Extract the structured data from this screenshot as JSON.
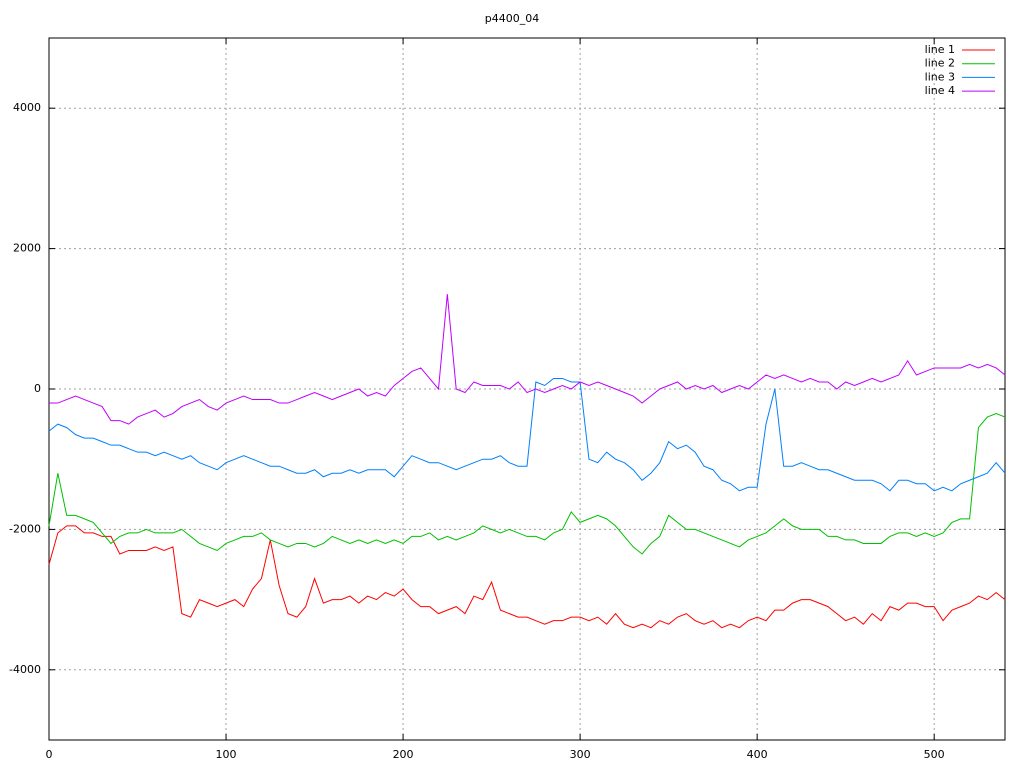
{
  "chart_data": {
    "type": "line",
    "title": "p4400_04",
    "x": [
      0,
      5,
      10,
      15,
      20,
      25,
      30,
      35,
      40,
      45,
      50,
      55,
      60,
      65,
      70,
      75,
      80,
      85,
      90,
      95,
      100,
      105,
      110,
      115,
      120,
      125,
      130,
      135,
      140,
      145,
      150,
      155,
      160,
      165,
      170,
      175,
      180,
      185,
      190,
      195,
      200,
      205,
      210,
      215,
      220,
      225,
      230,
      235,
      240,
      245,
      250,
      255,
      260,
      265,
      270,
      275,
      280,
      285,
      290,
      295,
      300,
      305,
      310,
      315,
      320,
      325,
      330,
      335,
      340,
      345,
      350,
      355,
      360,
      365,
      370,
      375,
      380,
      385,
      390,
      395,
      400,
      405,
      410,
      415,
      420,
      425,
      430,
      435,
      440,
      445,
      450,
      455,
      460,
      465,
      470,
      475,
      480,
      485,
      490,
      495,
      500,
      505,
      510,
      515,
      520,
      525,
      530,
      535,
      540
    ],
    "series": [
      {
        "name": "line 1",
        "color": "#ff0000",
        "values": [
          -2500,
          -2050,
          -1950,
          -1950,
          -2050,
          -2050,
          -2100,
          -2100,
          -2350,
          -2300,
          -2300,
          -2300,
          -2250,
          -2300,
          -2250,
          -3200,
          -3250,
          -3000,
          -3050,
          -3100,
          -3050,
          -3000,
          -3100,
          -2850,
          -2700,
          -2150,
          -2800,
          -3200,
          -3250,
          -3100,
          -2700,
          -3050,
          -3000,
          -3000,
          -2950,
          -3050,
          -2950,
          -3000,
          -2900,
          -2950,
          -2850,
          -3000,
          -3100,
          -3100,
          -3200,
          -3150,
          -3100,
          -3200,
          -2950,
          -3000,
          -2750,
          -3150,
          -3200,
          -3250,
          -3250,
          -3300,
          -3350,
          -3300,
          -3300,
          -3250,
          -3250,
          -3300,
          -3250,
          -3350,
          -3200,
          -3350,
          -3400,
          -3350,
          -3400,
          -3300,
          -3350,
          -3250,
          -3200,
          -3300,
          -3350,
          -3300,
          -3400,
          -3350,
          -3400,
          -3300,
          -3250,
          -3300,
          -3150,
          -3150,
          -3050,
          -3000,
          -3000,
          -3050,
          -3100,
          -3200,
          -3300,
          -3250,
          -3350,
          -3200,
          -3300,
          -3100,
          -3150,
          -3050,
          -3050,
          -3100,
          -3100,
          -3300,
          -3150,
          -3100,
          -3050,
          -2950,
          -3000,
          -2900,
          -3000
        ]
      },
      {
        "name": "line 2",
        "color": "#00c000",
        "values": [
          -1950,
          -1200,
          -1800,
          -1800,
          -1850,
          -1900,
          -2050,
          -2200,
          -2100,
          -2050,
          -2050,
          -2000,
          -2050,
          -2050,
          -2050,
          -2000,
          -2100,
          -2200,
          -2250,
          -2300,
          -2200,
          -2150,
          -2100,
          -2100,
          -2050,
          -2150,
          -2200,
          -2250,
          -2200,
          -2200,
          -2250,
          -2200,
          -2100,
          -2150,
          -2200,
          -2150,
          -2200,
          -2150,
          -2200,
          -2150,
          -2200,
          -2100,
          -2100,
          -2050,
          -2150,
          -2100,
          -2150,
          -2100,
          -2050,
          -1950,
          -2000,
          -2050,
          -2000,
          -2050,
          -2100,
          -2100,
          -2150,
          -2050,
          -2000,
          -1750,
          -1900,
          -1850,
          -1800,
          -1850,
          -1950,
          -2100,
          -2250,
          -2350,
          -2200,
          -2100,
          -1800,
          -1900,
          -2000,
          -2000,
          -2050,
          -2100,
          -2150,
          -2200,
          -2250,
          -2150,
          -2100,
          -2050,
          -1950,
          -1850,
          -1950,
          -2000,
          -2000,
          -2000,
          -2100,
          -2100,
          -2150,
          -2150,
          -2200,
          -2200,
          -2200,
          -2100,
          -2050,
          -2050,
          -2100,
          -2050,
          -2100,
          -2050,
          -1900,
          -1850,
          -1850,
          -550,
          -400,
          -350,
          -400
        ]
      },
      {
        "name": "line 3",
        "color": "#0080ff",
        "values": [
          -600,
          -500,
          -550,
          -650,
          -700,
          -700,
          -750,
          -800,
          -800,
          -850,
          -900,
          -900,
          -950,
          -900,
          -950,
          -1000,
          -950,
          -1050,
          -1100,
          -1150,
          -1050,
          -1000,
          -950,
          -1000,
          -1050,
          -1100,
          -1100,
          -1150,
          -1200,
          -1200,
          -1150,
          -1250,
          -1200,
          -1200,
          -1150,
          -1200,
          -1150,
          -1150,
          -1150,
          -1250,
          -1100,
          -950,
          -1000,
          -1050,
          -1050,
          -1100,
          -1150,
          -1100,
          -1050,
          -1000,
          -1000,
          -950,
          -1050,
          -1100,
          -1100,
          100,
          50,
          150,
          150,
          100,
          100,
          -1000,
          -1050,
          -900,
          -1000,
          -1050,
          -1150,
          -1300,
          -1200,
          -1050,
          -750,
          -850,
          -800,
          -900,
          -1100,
          -1150,
          -1300,
          -1350,
          -1450,
          -1400,
          -1400,
          -500,
          0,
          -1100,
          -1100,
          -1050,
          -1100,
          -1150,
          -1150,
          -1200,
          -1250,
          -1300,
          -1300,
          -1300,
          -1350,
          -1450,
          -1300,
          -1300,
          -1350,
          -1350,
          -1450,
          -1400,
          -1450,
          -1350,
          -1300,
          -1250,
          -1200,
          -1050,
          -1200
        ]
      },
      {
        "name": "line 4",
        "color": "#c000ff",
        "values": [
          -200,
          -200,
          -150,
          -100,
          -150,
          -200,
          -250,
          -450,
          -450,
          -500,
          -400,
          -350,
          -300,
          -400,
          -350,
          -250,
          -200,
          -150,
          -250,
          -300,
          -200,
          -150,
          -100,
          -150,
          -150,
          -150,
          -200,
          -200,
          -150,
          -100,
          -50,
          -100,
          -150,
          -100,
          -50,
          0,
          -100,
          -50,
          -100,
          50,
          150,
          250,
          300,
          150,
          0,
          1350,
          0,
          -50,
          100,
          50,
          50,
          50,
          0,
          100,
          -50,
          0,
          -50,
          0,
          50,
          0,
          100,
          50,
          100,
          50,
          0,
          -50,
          -100,
          -200,
          -100,
          0,
          50,
          100,
          0,
          50,
          0,
          50,
          -50,
          0,
          50,
          0,
          100,
          200,
          150,
          200,
          150,
          100,
          150,
          100,
          100,
          0,
          100,
          50,
          100,
          150,
          100,
          150,
          200,
          400,
          200,
          250,
          300,
          300,
          300,
          300,
          350,
          300,
          350,
          300,
          200
        ]
      }
    ],
    "xlim": [
      0,
      540
    ],
    "xticks": [
      0,
      100,
      200,
      300,
      400,
      500
    ],
    "ylim": [
      -5000,
      5000
    ],
    "yticks": [
      -4000,
      -2000,
      0,
      2000,
      4000
    ],
    "grid": true,
    "legend": "top-right"
  }
}
